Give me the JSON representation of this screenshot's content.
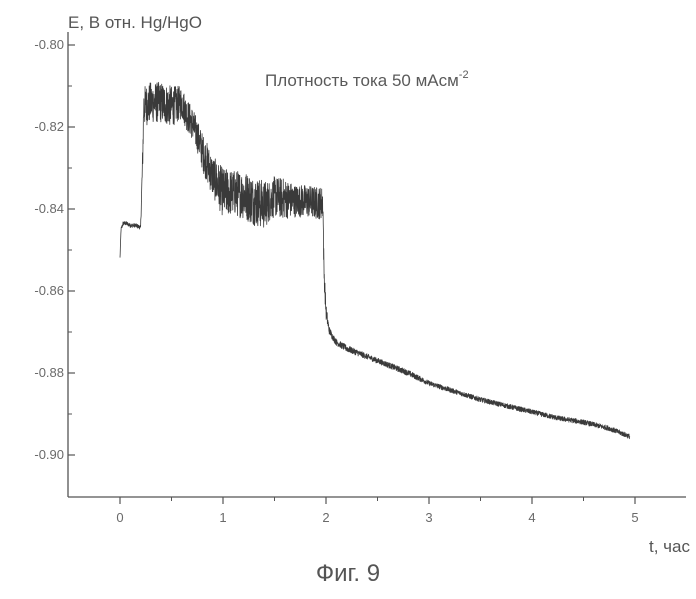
{
  "figure": {
    "caption": "Фиг. 9"
  },
  "chart_data": {
    "type": "line",
    "title": "",
    "ylabel": "E, В отн. Hg/HgO",
    "xlabel": "t, час",
    "annotation": "Плотность тока 50 мАсм",
    "annotation_superscript": "-2",
    "xlim": [
      -0.5,
      5.5
    ],
    "ylim": [
      -0.91,
      -0.8
    ],
    "x_ticks": [
      0,
      1,
      2,
      3,
      4,
      5
    ],
    "y_ticks": [
      -0.8,
      -0.82,
      -0.84,
      -0.86,
      -0.88,
      -0.9
    ],
    "x_tick_labels": [
      "0",
      "1",
      "2",
      "3",
      "4",
      "5"
    ],
    "y_tick_labels": [
      "-0.80",
      "-0.82",
      "-0.84",
      "-0.86",
      "-0.88",
      "-0.90"
    ],
    "grid": false,
    "legend": "none",
    "series": [
      {
        "color": "#3a3a3a",
        "x": [
          0.0,
          0.01,
          0.03,
          0.06,
          0.1,
          0.15,
          0.2,
          0.22,
          0.23,
          0.3,
          0.4,
          0.5,
          0.6,
          0.65,
          0.7,
          0.75,
          0.8,
          0.85,
          0.9,
          0.95,
          1.0,
          1.1,
          1.2,
          1.3,
          1.4,
          1.45,
          1.5,
          1.6,
          1.7,
          1.8,
          1.9,
          1.97,
          1.98,
          2.0,
          2.03,
          2.06,
          2.1,
          2.2,
          2.4,
          2.6,
          2.8,
          3.0,
          3.25,
          3.5,
          3.75,
          4.0,
          4.25,
          4.5,
          4.75,
          4.95
        ],
        "y": [
          -0.852,
          -0.845,
          -0.8435,
          -0.8435,
          -0.844,
          -0.844,
          -0.8445,
          -0.828,
          -0.815,
          -0.814,
          -0.814,
          -0.815,
          -0.814,
          -0.817,
          -0.819,
          -0.822,
          -0.826,
          -0.829,
          -0.832,
          -0.834,
          -0.836,
          -0.836,
          -0.8365,
          -0.838,
          -0.839,
          -0.838,
          -0.837,
          -0.8375,
          -0.838,
          -0.838,
          -0.8385,
          -0.8385,
          -0.855,
          -0.865,
          -0.8695,
          -0.871,
          -0.8725,
          -0.874,
          -0.876,
          -0.878,
          -0.88,
          -0.8825,
          -0.8845,
          -0.8865,
          -0.888,
          -0.8895,
          -0.891,
          -0.892,
          -0.8935,
          -0.8955
        ],
        "noise": [
          0.0005,
          0.0005,
          0.0005,
          0.0005,
          0.0005,
          0.0005,
          0.0005,
          0.004,
          0.005,
          0.005,
          0.005,
          0.005,
          0.004,
          0.004,
          0.004,
          0.004,
          0.0045,
          0.005,
          0.005,
          0.0055,
          0.006,
          0.0055,
          0.006,
          0.006,
          0.006,
          0.005,
          0.005,
          0.005,
          0.004,
          0.004,
          0.004,
          0.004,
          0.003,
          0.002,
          0.001,
          0.0008,
          0.0008,
          0.0008,
          0.0007,
          0.0007,
          0.0007,
          0.0006,
          0.0006,
          0.0006,
          0.0006,
          0.0006,
          0.0006,
          0.0006,
          0.0006,
          0.0006
        ]
      }
    ]
  }
}
